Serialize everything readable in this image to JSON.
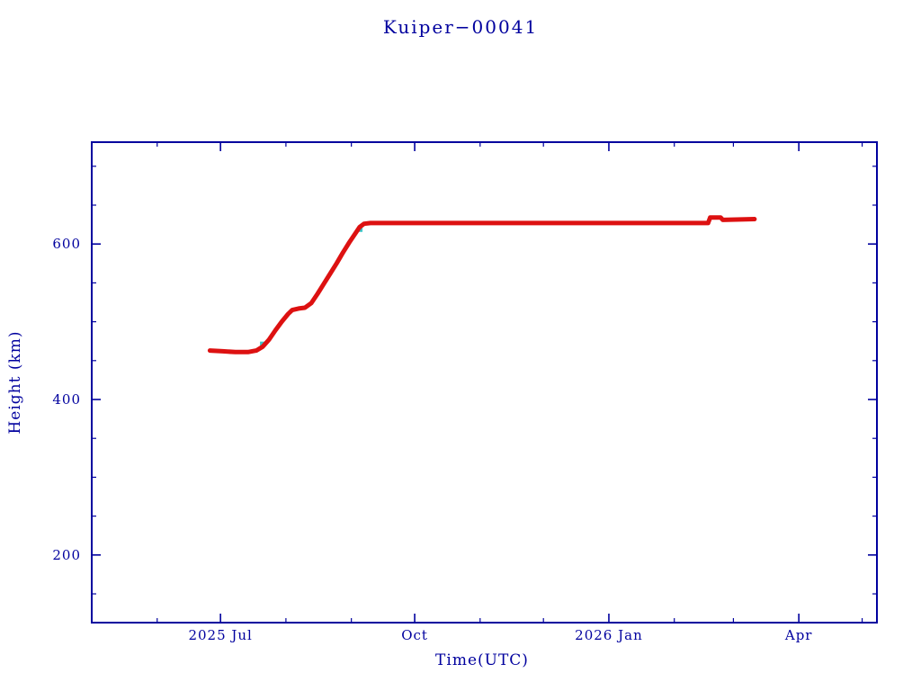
{
  "colors": {
    "background": "#ffffff",
    "axis": "#00009e",
    "series": "#dd1111",
    "marker": "#3cc6c8"
  },
  "chart_data": {
    "type": "line",
    "title": "Kuiper−00041",
    "xlabel": "Time(UTC)",
    "ylabel": "Height (km)",
    "x_range": [
      "2025-05-01",
      "2026-05-08"
    ],
    "ylim": [
      113,
      731
    ],
    "y_ticks": [
      200,
      400,
      600
    ],
    "x_ticks": [
      {
        "label": "2025 Jul",
        "date": "2025-07-01"
      },
      {
        "label": "Oct",
        "date": "2025-10-01"
      },
      {
        "label": "2026 Jan",
        "date": "2026-01-01"
      },
      {
        "label": "Apr",
        "date": "2026-04-01"
      }
    ],
    "grid": false,
    "legend": false,
    "series": [
      {
        "name": "height",
        "color": "#dd1111",
        "points": [
          [
            "2025-06-26",
            463
          ],
          [
            "2025-07-02",
            462
          ],
          [
            "2025-07-08",
            461
          ],
          [
            "2025-07-14",
            461
          ],
          [
            "2025-07-18",
            463
          ],
          [
            "2025-07-21",
            468
          ],
          [
            "2025-07-24",
            477
          ],
          [
            "2025-07-27",
            489
          ],
          [
            "2025-07-30",
            500
          ],
          [
            "2025-08-02",
            510
          ],
          [
            "2025-08-04",
            515
          ],
          [
            "2025-08-07",
            517
          ],
          [
            "2025-08-10",
            518
          ],
          [
            "2025-08-13",
            524
          ],
          [
            "2025-08-16",
            536
          ],
          [
            "2025-08-19",
            549
          ],
          [
            "2025-08-22",
            562
          ],
          [
            "2025-08-25",
            575
          ],
          [
            "2025-08-28",
            589
          ],
          [
            "2025-08-31",
            602
          ],
          [
            "2025-09-03",
            614
          ],
          [
            "2025-09-05",
            622
          ],
          [
            "2025-09-07",
            626
          ],
          [
            "2025-09-10",
            627
          ],
          [
            "2025-10-15",
            627
          ],
          [
            "2025-11-20",
            627
          ],
          [
            "2025-12-25",
            627
          ],
          [
            "2026-01-25",
            627
          ],
          [
            "2026-02-17",
            627
          ],
          [
            "2026-02-18",
            634
          ],
          [
            "2026-02-23",
            634
          ],
          [
            "2026-02-24",
            631
          ],
          [
            "2026-03-11",
            632
          ]
        ]
      }
    ],
    "markers": [
      {
        "date": "2025-07-21",
        "value": 471,
        "color": "#3cc6c8"
      },
      {
        "date": "2025-09-05",
        "value": 619,
        "color": "#3cc6c8"
      }
    ]
  }
}
